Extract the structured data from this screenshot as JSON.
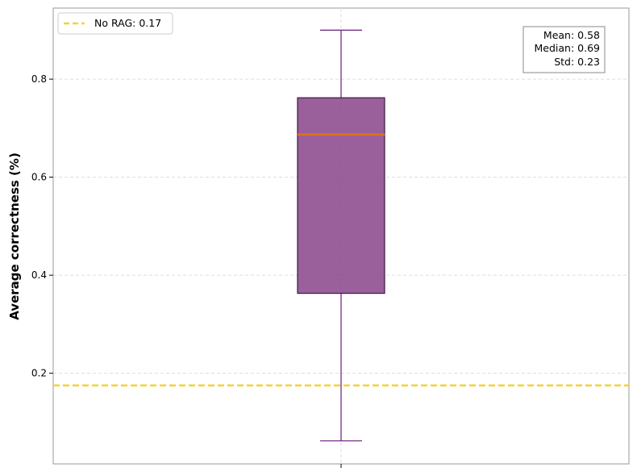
{
  "chart_data": {
    "type": "box",
    "ylabel": "Average correctness (%)",
    "ylim": [
      0.015,
      0.945
    ],
    "yticks": [
      0.2,
      0.4,
      0.6,
      0.8
    ],
    "ytick_labels": [
      "0.2",
      "0.4",
      "0.6",
      "0.8"
    ],
    "grid": true,
    "legend_position": "top-left",
    "box": {
      "whisker_low": 0.062,
      "q1": 0.363,
      "median": 0.687,
      "q3": 0.762,
      "whisker_high": 0.9
    },
    "reference_line": {
      "value": 0.175,
      "label": "No RAG: 0.17",
      "color": "#f5d237"
    },
    "stats": {
      "position": "top-right",
      "lines": [
        "Mean: 0.58",
        "Median: 0.69",
        "Std: 0.23"
      ]
    },
    "colors": {
      "box_fill": "#8b4a8e",
      "box_edge": "#3a1a3d",
      "whisker": "#6a1a78",
      "median": "#e07020",
      "grid": "#dddddd"
    }
  }
}
